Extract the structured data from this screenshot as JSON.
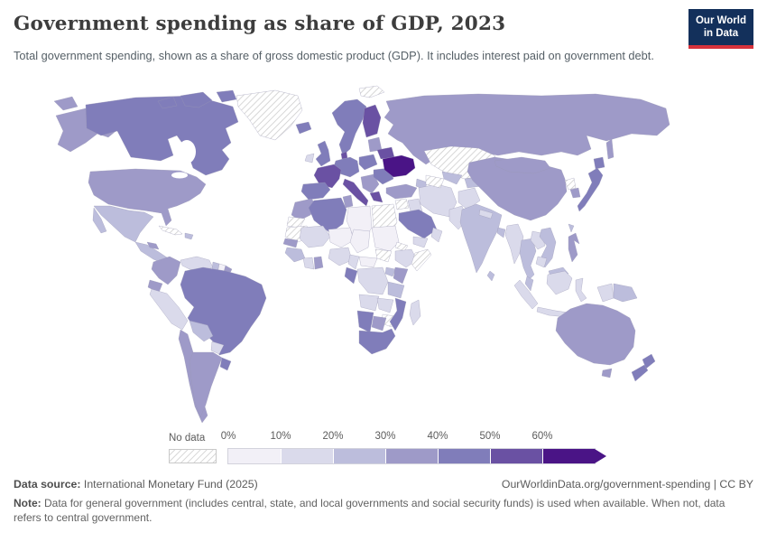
{
  "header": {
    "title": "Government spending as share of GDP, 2023",
    "subtitle": "Total government spending, shown as a share of gross domestic product (GDP). It includes interest paid on government debt.",
    "logo_line1": "Our World",
    "logo_line2": "in Data",
    "logo_bg": "#13305b",
    "logo_accent": "#d7323c"
  },
  "legend": {
    "no_data_label": "No data",
    "ticks": [
      "0%",
      "10%",
      "20%",
      "30%",
      "40%",
      "50%",
      "60%"
    ],
    "bin_colors": [
      "#f2f0f7",
      "#dadaeb",
      "#bcbddc",
      "#9e9ac8",
      "#807dba",
      "#6a51a3",
      "#4a1486"
    ]
  },
  "footer": {
    "source_label": "Data source:",
    "source_text": " International Monetary Fund (2025)",
    "link_text": "OurWorldinData.org/government-spending | CC BY",
    "note_label": "Note:",
    "note_text": " Data for general government (includes central, state, and local governments and social security funds) is used when available. When not, data refers to central government."
  },
  "chart_data": {
    "type": "choropleth_map",
    "title": "Government spending as share of GDP, 2023",
    "unit": "% of GDP",
    "bins": [
      {
        "label": "0%-10%",
        "color": "#f2f0f7"
      },
      {
        "label": "10%-20%",
        "color": "#dadaeb"
      },
      {
        "label": "20%-30%",
        "color": "#bcbddc"
      },
      {
        "label": "30%-40%",
        "color": "#9e9ac8"
      },
      {
        "label": "40%-50%",
        "color": "#807dba"
      },
      {
        "label": "50%-60%",
        "color": "#6a51a3"
      },
      {
        "label": "60%+",
        "color": "#4a1486"
      },
      {
        "label": "No data",
        "color": "hatch"
      }
    ],
    "regions": {
      "alaska": 3,
      "canada": 4,
      "arctic-islands": 4,
      "greenland": "n",
      "iceland": 4,
      "usa": 3,
      "mexico": 2,
      "central-america": 2,
      "honduras": 3,
      "cuba": "n",
      "hispaniola": 2,
      "colombia": 3,
      "venezuela": 1,
      "guyana": 2,
      "suriname": 0,
      "french-guiana": 3,
      "ecuador": 3,
      "peru": 1,
      "brazil": 4,
      "bolivia": 2,
      "paraguay": 1,
      "chile": 3,
      "argentina": 3,
      "uruguay": 4,
      "ireland": 1,
      "uk": 4,
      "scandinavia": 4,
      "finland": 5,
      "baltics": 3,
      "denmark": 5,
      "central-europe": 4,
      "poland": 4,
      "france": 5,
      "iberia": 4,
      "italy": 5,
      "balkans": 3,
      "greece": 5,
      "romania-bulgaria": 4,
      "belarus": 5,
      "ukraine": 6,
      "russia": 3,
      "turkey": 3,
      "caucasus": 2,
      "svalbard": "n",
      "syria": "n",
      "iraq": 1,
      "saudi-arabia": 4,
      "yemen": 1,
      "oman": 1,
      "iran": 1,
      "afghanistan": 1,
      "pakistan": 1,
      "kazakhstan": "n",
      "turkmenistan": "n",
      "uzbekistan": 2,
      "kyrgyzstan": 2,
      "china": 3,
      "mongolia": 3,
      "north-korea": "n",
      "south-korea": 3,
      "japan": 4,
      "sakhalin": 3,
      "india": 2,
      "nepal": 1,
      "bangladesh": 2,
      "sri-lanka": 2,
      "myanmar": 1,
      "thailand": 2,
      "laos": 1,
      "vietnam": 2,
      "cambodia": 1,
      "malaysia": 2,
      "sumatra": 1,
      "java": 1,
      "borneo": 1,
      "sulawesi": 1,
      "philippines": 3,
      "taiwan": 2,
      "west-papua": 1,
      "papua-new-guinea": 2,
      "australia": 3,
      "tasmania": 3,
      "new-zealand": 4,
      "morocco": 3,
      "western-sahara": "n",
      "mauritania": "n",
      "algeria": 4,
      "tunisia": 3,
      "libya": 0,
      "egypt": "n",
      "mali": 1,
      "niger": 0,
      "chad": 0,
      "sudan": 0,
      "south-sudan": "n",
      "eritrea": "n",
      "ethiopia": 1,
      "somalia": "n",
      "senegal": 3,
      "guinea": 2,
      "ivory-coast": 1,
      "ghana": 3,
      "nigeria": 1,
      "cameroon": 1,
      "central-african-republic": 0,
      "drc": 1,
      "congo": 4,
      "uganda": 2,
      "kenya": 3,
      "tanzania": 2,
      "angola": 1,
      "zambia": 1,
      "zimbabwe": "n",
      "mozambique": 4,
      "madagascar": 1,
      "namibia": 4,
      "botswana": 3,
      "south-africa": 4
    }
  }
}
